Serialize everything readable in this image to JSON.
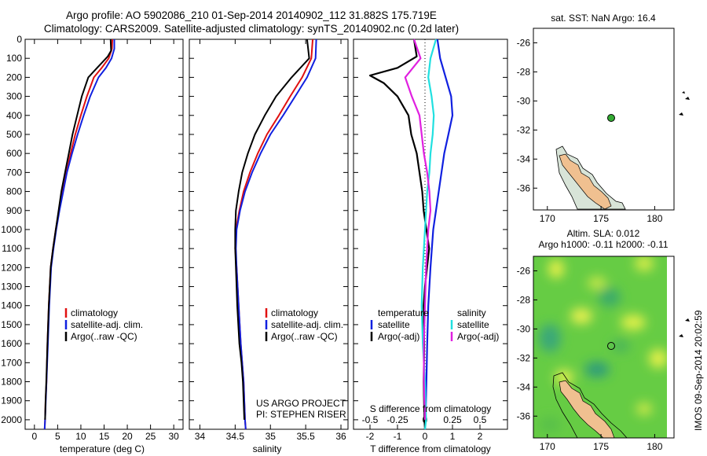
{
  "header": {
    "line1": "Argo profile: AO 5902086_210 01-Sep-2014 20140902_112 31.882S 175.719E",
    "line2": "Climatology: CARS2009. Satellite-adjusted climatology: synTS_20140902.nc (0.2d later)"
  },
  "colors": {
    "climatology": "#e01010",
    "satellite": "#1020e0",
    "argo": "#000000",
    "cyan": "#20e0e0",
    "magenta": "#e020e0",
    "land": "#f0c090",
    "sea_green": "#66cc44"
  },
  "depth_axis": {
    "min": 0,
    "max": 2050,
    "ticks": [
      "0",
      "100",
      "200",
      "300",
      "400",
      "500",
      "600",
      "700",
      "800",
      "900",
      "1000",
      "1100",
      "1200",
      "1300",
      "1400",
      "1500",
      "1600",
      "1700",
      "1800",
      "1900",
      "2000"
    ]
  },
  "legend_profile": {
    "items": [
      "climatology",
      "satellite-adj. clim.",
      "Argo(..raw -QC)"
    ]
  },
  "legend_diff": {
    "temperature_head": "temperature",
    "salinity_head": "salinity",
    "t_sat": "satellite",
    "t_argo": "Argo(-adj)",
    "s_sat": "satellite",
    "s_argo": "Argo(-adj)"
  },
  "credits": {
    "project": "US ARGO PROJECT",
    "pi": "PI: STEPHEN RISER"
  },
  "map_top": {
    "title": "sat. SST: NaN Argo: 16.4",
    "yticks": [
      "-26",
      "-28",
      "-30",
      "-32",
      "-34",
      "-36"
    ],
    "xticks": [
      "170",
      "175",
      "180"
    ]
  },
  "map_bottom": {
    "title1": "Altim. SLA: 0.012",
    "title2": "Argo h1000: -0.11 h2000: -0.11",
    "yticks": [
      "-26",
      "-28",
      "-30",
      "-32",
      "-34",
      "-36"
    ],
    "xticks": [
      "170",
      "175",
      "180"
    ]
  },
  "timestamp": "IMOS 09-Sep-2014 20:02:59",
  "chart_data": [
    {
      "type": "line",
      "xlabel": "temperature (deg C)",
      "xticks": [
        "0",
        "5",
        "10",
        "15",
        "20",
        "25",
        "30"
      ],
      "xlim": [
        -2,
        32
      ],
      "ylim": [
        0,
        2050
      ],
      "series": [
        {
          "name": "climatology",
          "color": "#e01010",
          "x": [
            16.8,
            16.7,
            16.0,
            14.5,
            12.8,
            11.3,
            10.0,
            8.8,
            7.8,
            6.9,
            6.1,
            5.3,
            4.6,
            4.0,
            3.5,
            3.1,
            2.8,
            2.6,
            2.4,
            2.3,
            2.2
          ],
          "y": [
            0,
            50,
            100,
            150,
            200,
            300,
            400,
            500,
            600,
            700,
            800,
            900,
            1000,
            1100,
            1200,
            1400,
            1600,
            1800,
            1900,
            2000,
            2050
          ]
        },
        {
          "name": "satellite-adj. clim.",
          "color": "#1020e0",
          "x": [
            17.2,
            17.2,
            16.6,
            15.4,
            13.8,
            12.0,
            10.6,
            9.3,
            8.1,
            7.0,
            6.2,
            5.4,
            4.7,
            4.1,
            3.6,
            3.2,
            2.9,
            2.6,
            2.45,
            2.3,
            2.2
          ],
          "y": [
            0,
            50,
            100,
            150,
            200,
            300,
            400,
            500,
            600,
            700,
            800,
            900,
            1000,
            1100,
            1200,
            1400,
            1600,
            1800,
            1900,
            2000,
            2050
          ]
        },
        {
          "name": "Argo(..raw -QC)",
          "color": "#000000",
          "x": [
            16.4,
            16.5,
            15.8,
            13.5,
            11.6,
            10.2,
            9.2,
            8.2,
            7.4,
            6.6,
            5.8,
            5.2,
            4.6,
            4.0,
            3.5,
            3.1,
            2.8,
            2.55,
            2.4,
            2.3
          ],
          "y": [
            0,
            60,
            90,
            150,
            200,
            300,
            400,
            500,
            600,
            700,
            800,
            900,
            1000,
            1100,
            1200,
            1400,
            1600,
            1800,
            1900,
            2000
          ]
        }
      ]
    },
    {
      "type": "line",
      "xlabel": "salinity",
      "xticks": [
        "34",
        "34.5",
        "35",
        "35.5",
        "36"
      ],
      "xlim": [
        33.85,
        36.1
      ],
      "ylim": [
        0,
        2050
      ],
      "series": [
        {
          "name": "climatology",
          "color": "#e01010",
          "x": [
            35.6,
            35.58,
            35.45,
            35.28,
            35.12,
            34.95,
            34.82,
            34.71,
            34.62,
            34.56,
            34.51,
            34.5,
            34.52,
            34.55,
            34.58,
            34.6,
            34.62,
            34.63,
            34.64,
            34.65
          ],
          "y": [
            0,
            100,
            200,
            300,
            400,
            500,
            600,
            700,
            800,
            900,
            1000,
            1100,
            1200,
            1400,
            1600,
            1700,
            1800,
            1900,
            2000,
            2050
          ]
        },
        {
          "name": "satellite-adj. clim.",
          "color": "#1020e0",
          "x": [
            35.65,
            35.64,
            35.52,
            35.35,
            35.18,
            35.0,
            34.86,
            34.74,
            34.64,
            34.57,
            34.52,
            34.51,
            34.52,
            34.55,
            34.58,
            34.6,
            34.62,
            34.63,
            34.64,
            34.65
          ],
          "y": [
            0,
            100,
            200,
            300,
            400,
            500,
            600,
            700,
            800,
            900,
            1000,
            1100,
            1200,
            1400,
            1600,
            1700,
            1800,
            1900,
            2000,
            2050
          ]
        },
        {
          "name": "Argo(..raw -QC)",
          "color": "#000000",
          "x": [
            35.52,
            35.55,
            35.3,
            35.08,
            34.92,
            34.78,
            34.68,
            34.6,
            34.55,
            34.51,
            34.5,
            34.5,
            34.51,
            34.53,
            34.56,
            34.59,
            34.61,
            34.62,
            34.63
          ],
          "y": [
            0,
            100,
            200,
            300,
            400,
            500,
            600,
            700,
            800,
            900,
            1000,
            1100,
            1200,
            1400,
            1600,
            1700,
            1800,
            1900,
            2000
          ]
        }
      ]
    },
    {
      "type": "line",
      "xlabel": "T difference from climatology",
      "xticks_T": [
        "-2",
        "-1",
        "0",
        "1",
        "2"
      ],
      "xlim_T": [
        -2.6,
        3.0
      ],
      "xlabel_S": "S difference from climatology",
      "xticks_S": [
        "-0.5",
        "-0.25",
        "0",
        "0.25",
        "0.5"
      ],
      "xlim_S": [
        -0.65,
        0.75
      ],
      "ylim": [
        0,
        2050
      ],
      "series": [
        {
          "name": "temperature satellite",
          "axis": "T",
          "color": "#1020e0",
          "x": [
            0.45,
            0.55,
            0.75,
            0.95,
            1.0,
            0.85,
            0.7,
            0.6,
            0.5,
            0.4,
            0.3,
            0.2,
            0.12,
            0.08,
            0.05,
            0.02,
            0.0
          ],
          "y": [
            0,
            100,
            200,
            300,
            400,
            500,
            600,
            700,
            800,
            900,
            1000,
            1200,
            1400,
            1600,
            1800,
            2000,
            2050
          ]
        },
        {
          "name": "temperature Argo(-adj)",
          "axis": "T",
          "color": "#000000",
          "x": [
            -0.4,
            -0.3,
            -1.0,
            -2.0,
            -1.5,
            -1.0,
            -0.6,
            -0.5,
            -0.3,
            -0.2,
            -0.1,
            -0.05,
            0.15,
            0.0,
            -0.05,
            -0.03,
            -0.05,
            -0.02,
            0.0
          ],
          "y": [
            0,
            90,
            150,
            190,
            230,
            300,
            400,
            500,
            600,
            700,
            800,
            900,
            1100,
            1300,
            1400,
            1600,
            1800,
            2000,
            2050
          ]
        },
        {
          "name": "salinity satellite",
          "axis": "S",
          "color": "#20e0e0",
          "x": [
            0.1,
            0.05,
            0.03,
            0.06,
            0.08,
            0.07,
            0.05,
            0.04,
            0.02,
            0.01,
            0.0,
            -0.02,
            -0.03,
            -0.02,
            0.0,
            0.01,
            0.0
          ],
          "y": [
            0,
            100,
            200,
            300,
            400,
            500,
            600,
            700,
            800,
            900,
            1000,
            1200,
            1400,
            1600,
            1800,
            2000,
            2050
          ]
        },
        {
          "name": "salinity Argo(-adj)",
          "axis": "S",
          "color": "#e020e0",
          "x": [
            -0.1,
            -0.04,
            -0.18,
            -0.12,
            -0.05,
            -0.03,
            -0.01,
            0.02,
            0.04,
            0.05,
            0.03,
            0.01,
            0.0,
            -0.01,
            -0.01,
            0.0
          ],
          "y": [
            0,
            100,
            200,
            300,
            400,
            500,
            600,
            700,
            800,
            900,
            1000,
            1200,
            1400,
            1600,
            1800,
            2000
          ]
        }
      ]
    }
  ]
}
